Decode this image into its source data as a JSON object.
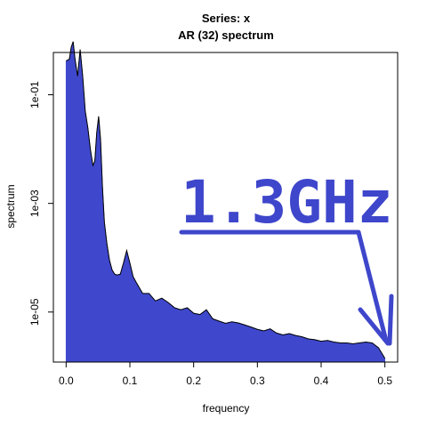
{
  "chart_data": {
    "type": "area",
    "title_line1": "Series: x",
    "title_line2": "AR (32) spectrum",
    "xlabel": "frequency",
    "ylabel": "spectrum",
    "x_ticks": [
      "0.0",
      "0.1",
      "0.2",
      "0.3",
      "0.4",
      "0.5"
    ],
    "x_tick_values": [
      0,
      0.1,
      0.2,
      0.3,
      0.4,
      0.5
    ],
    "y_ticks": [
      "1e-01",
      "1e-03",
      "1e-05"
    ],
    "y_tick_values": [
      0.1,
      0.001,
      1e-05
    ],
    "xlim": [
      -0.02,
      0.52
    ],
    "ylim": [
      1.2e-06,
      0.6
    ],
    "y_scale": "log",
    "fill_color": "#3f48cc",
    "line_color": "#000000",
    "series": [
      {
        "x": [
          0.0,
          0.005,
          0.008,
          0.011,
          0.014,
          0.018,
          0.022,
          0.026,
          0.03,
          0.034,
          0.038,
          0.042,
          0.045,
          0.048,
          0.051,
          0.054,
          0.057,
          0.06,
          0.064,
          0.068,
          0.072,
          0.076,
          0.08,
          0.085,
          0.09,
          0.095,
          0.1,
          0.105,
          0.11,
          0.12,
          0.13,
          0.14,
          0.15,
          0.16,
          0.17,
          0.18,
          0.19,
          0.2,
          0.21,
          0.22,
          0.23,
          0.24,
          0.25,
          0.26,
          0.27,
          0.28,
          0.29,
          0.3,
          0.31,
          0.32,
          0.33,
          0.34,
          0.35,
          0.36,
          0.37,
          0.38,
          0.39,
          0.4,
          0.41,
          0.42,
          0.43,
          0.44,
          0.45,
          0.46,
          0.47,
          0.48,
          0.49,
          0.5
        ],
        "y": [
          0.42,
          0.45,
          0.75,
          0.95,
          0.45,
          0.22,
          0.68,
          0.22,
          0.05,
          0.025,
          0.01,
          0.005,
          0.006,
          0.02,
          0.04,
          0.015,
          0.002,
          0.00045,
          0.00018,
          9e-05,
          6e-05,
          5e-05,
          4.8e-05,
          5e-05,
          8e-05,
          0.000135,
          8e-05,
          4.5e-05,
          3.5e-05,
          2.2e-05,
          2.2e-05,
          1.6e-05,
          1.8e-05,
          1.5e-05,
          1.2e-05,
          1.1e-05,
          1.2e-05,
          9.5e-06,
          9e-06,
          1.1e-05,
          7.5e-06,
          6.8e-06,
          6.2e-06,
          6.6e-06,
          6.3e-06,
          5.8e-06,
          5.3e-06,
          4.8e-06,
          4.5e-06,
          4.9e-06,
          4.1e-06,
          3.8e-06,
          4e-06,
          3.7e-06,
          3.5e-06,
          3.2e-06,
          3.1e-06,
          2.9e-06,
          3e-06,
          2.8e-06,
          2.7e-06,
          2.7e-06,
          2.6e-06,
          2.7e-06,
          2.8e-06,
          2.7e-06,
          2.2e-06,
          1.4e-06
        ]
      }
    ]
  },
  "annotation": {
    "text": "1.3GHz",
    "color": "#3e46cb"
  }
}
